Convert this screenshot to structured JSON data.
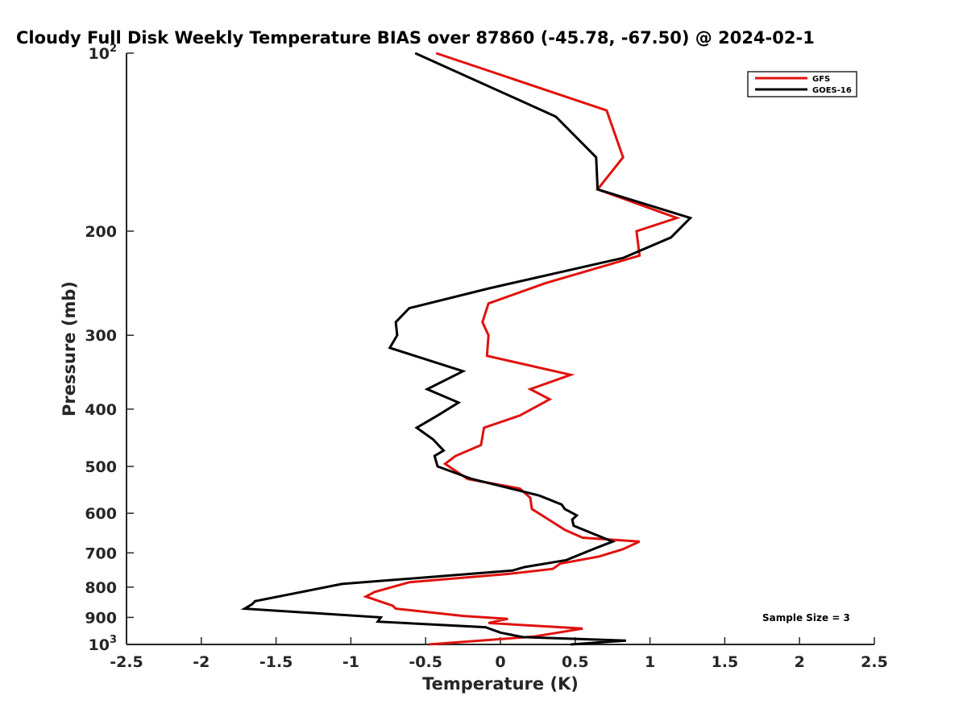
{
  "chart_data": {
    "type": "line",
    "title": "Cloudy Full Disk Weekly Temperature BIAS over 87860 (-45.78, -67.50) @ 2024-02-1",
    "xlabel": "Temperature (K)",
    "ylabel": "Pressure (mb)",
    "xlim": [
      -2.5,
      2.5
    ],
    "ylim": [
      100,
      1000
    ],
    "y_scale": "log",
    "y_reversed": true,
    "grid": false,
    "legend_position": "top-right",
    "x_ticks": [
      "-2.5",
      "-2",
      "-1.5",
      "-1",
      "-0.5",
      "0",
      "0.5",
      "1",
      "1.5",
      "2",
      "2.5"
    ],
    "x_tick_values": [
      -2.5,
      -2,
      -1.5,
      -1,
      -0.5,
      0,
      0.5,
      1,
      1.5,
      2,
      2.5
    ],
    "y_ticks": [
      {
        "value": 100,
        "base": "10",
        "exp": "2",
        "label": ""
      },
      {
        "value": 200,
        "base": "",
        "exp": "",
        "label": "200"
      },
      {
        "value": 300,
        "base": "",
        "exp": "",
        "label": "300"
      },
      {
        "value": 400,
        "base": "",
        "exp": "",
        "label": "400"
      },
      {
        "value": 500,
        "base": "",
        "exp": "",
        "label": "500"
      },
      {
        "value": 600,
        "base": "",
        "exp": "",
        "label": "600"
      },
      {
        "value": 700,
        "base": "",
        "exp": "",
        "label": "700"
      },
      {
        "value": 800,
        "base": "",
        "exp": "",
        "label": "800"
      },
      {
        "value": 900,
        "base": "",
        "exp": "",
        "label": "900"
      },
      {
        "value": 1000,
        "base": "10",
        "exp": "3",
        "label": ""
      }
    ],
    "annotation": "Sample Size = 3",
    "series": [
      {
        "name": "GFS",
        "color": "#e0120f",
        "points": [
          [
            -0.43,
            100
          ],
          [
            0.71,
            125
          ],
          [
            0.82,
            150
          ],
          [
            0.65,
            170
          ],
          [
            1.18,
            190
          ],
          [
            0.91,
            200
          ],
          [
            0.93,
            220
          ],
          [
            0.3,
            245
          ],
          [
            -0.08,
            265
          ],
          [
            -0.12,
            285
          ],
          [
            -0.08,
            300
          ],
          [
            -0.09,
            325
          ],
          [
            0.47,
            350
          ],
          [
            0.2,
            370
          ],
          [
            0.33,
            385
          ],
          [
            0.13,
            410
          ],
          [
            -0.11,
            430
          ],
          [
            -0.13,
            460
          ],
          [
            -0.3,
            480
          ],
          [
            -0.37,
            495
          ],
          [
            -0.22,
            525
          ],
          [
            0.13,
            545
          ],
          [
            0.2,
            565
          ],
          [
            0.21,
            590
          ],
          [
            0.3,
            610
          ],
          [
            0.43,
            640
          ],
          [
            0.55,
            660
          ],
          [
            0.93,
            670
          ],
          [
            0.82,
            690
          ],
          [
            0.66,
            710
          ],
          [
            0.4,
            730
          ],
          [
            0.35,
            745
          ],
          [
            0.05,
            760
          ],
          [
            -0.61,
            785
          ],
          [
            -0.84,
            815
          ],
          [
            -0.9,
            830
          ],
          [
            -0.72,
            860
          ],
          [
            -0.7,
            870
          ],
          [
            -0.25,
            895
          ],
          [
            0.05,
            905
          ],
          [
            -0.08,
            920
          ],
          [
            0.55,
            940
          ],
          [
            0.22,
            970
          ],
          [
            -0.48,
            1000
          ]
        ]
      },
      {
        "name": "GOES-16",
        "color": "#000000",
        "points": [
          [
            -0.57,
            100
          ],
          [
            0.37,
            128
          ],
          [
            0.64,
            150
          ],
          [
            0.65,
            170
          ],
          [
            1.27,
            190
          ],
          [
            1.14,
            205
          ],
          [
            0.82,
            222
          ],
          [
            -0.08,
            250
          ],
          [
            -0.61,
            270
          ],
          [
            -0.7,
            285
          ],
          [
            -0.69,
            300
          ],
          [
            -0.74,
            315
          ],
          [
            -0.25,
            345
          ],
          [
            -0.49,
            370
          ],
          [
            -0.28,
            390
          ],
          [
            -0.42,
            410
          ],
          [
            -0.56,
            430
          ],
          [
            -0.45,
            450
          ],
          [
            -0.38,
            470
          ],
          [
            -0.44,
            480
          ],
          [
            -0.42,
            500
          ],
          [
            -0.19,
            525
          ],
          [
            0.26,
            560
          ],
          [
            0.41,
            580
          ],
          [
            0.43,
            590
          ],
          [
            0.51,
            605
          ],
          [
            0.48,
            615
          ],
          [
            0.49,
            630
          ],
          [
            0.75,
            670
          ],
          [
            0.62,
            690
          ],
          [
            0.44,
            720
          ],
          [
            0.16,
            740
          ],
          [
            0.08,
            750
          ],
          [
            -1.06,
            790
          ],
          [
            -1.38,
            820
          ],
          [
            -1.64,
            845
          ],
          [
            -1.66,
            855
          ],
          [
            -1.71,
            870
          ],
          [
            -0.8,
            900
          ],
          [
            -0.82,
            915
          ],
          [
            -0.1,
            935
          ],
          [
            0.0,
            955
          ],
          [
            0.15,
            972
          ],
          [
            0.84,
            985
          ],
          [
            0.47,
            1000
          ]
        ]
      }
    ]
  }
}
